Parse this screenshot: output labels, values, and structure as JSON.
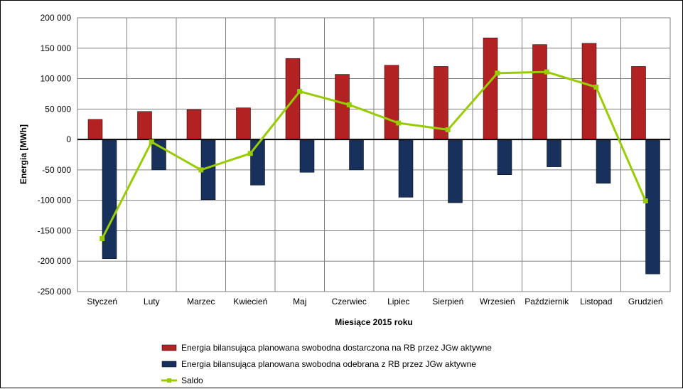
{
  "chart_data": {
    "type": "bar",
    "title": "",
    "xlabel": "Miesiące 2015  roku",
    "ylabel": "Energia  [MWh]",
    "ylim": [
      -250000,
      200000
    ],
    "y_ticks": [
      200000,
      150000,
      100000,
      50000,
      0,
      -50000,
      -100000,
      -150000,
      -200000,
      -250000
    ],
    "y_tick_labels": [
      "200 000",
      "150 000",
      "100 000",
      "50 000",
      "0",
      "-50 000",
      "-100 000",
      "-150 000",
      "-200 000",
      "-250 000"
    ],
    "grid": true,
    "legend_position": "bottom",
    "categories": [
      "Styczeń",
      "Luty",
      "Marzec",
      "Kwiecień",
      "Maj",
      "Czerwiec",
      "Lipiec",
      "Sierpień",
      "Wrzesień",
      "Październik",
      "Listopad",
      "Grudzień"
    ],
    "series": [
      {
        "name": "Energia bilansująca planowana swobodna dostarczona na RB przez JGw aktywne",
        "kind": "bar",
        "color": "#B22222",
        "values": [
          33000,
          46000,
          49000,
          52000,
          133000,
          107000,
          122000,
          120000,
          167000,
          156000,
          158000,
          120000
        ]
      },
      {
        "name": "Energia bilansująca planowana swobodna odebrana z RB przez JGw aktywne",
        "kind": "bar",
        "color": "#17305C",
        "values": [
          -196000,
          -50000,
          -99000,
          -75000,
          -54000,
          -50000,
          -95000,
          -104000,
          -58000,
          -45000,
          -72000,
          -221000
        ]
      },
      {
        "name": "Saldo",
        "kind": "line",
        "color": "#99CC00",
        "values": [
          -163000,
          -4000,
          -50000,
          -23000,
          79000,
          57000,
          27000,
          16000,
          109000,
          111000,
          86000,
          -101000
        ]
      }
    ]
  }
}
